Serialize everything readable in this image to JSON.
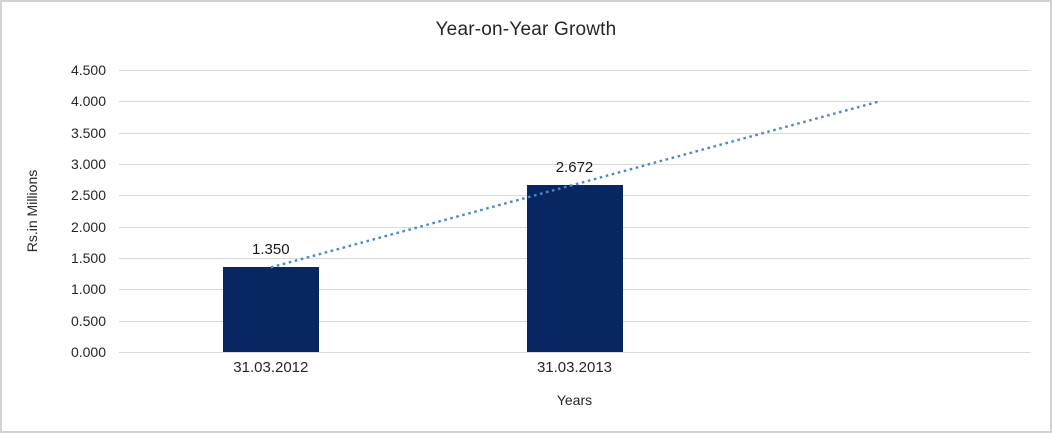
{
  "chart_data": {
    "type": "bar",
    "title": "Year-on-Year Growth",
    "xlabel": "Years",
    "ylabel": "Rs.in Millions",
    "categories": [
      "31.03.2012",
      "31.03.2013"
    ],
    "values": [
      1.35,
      2.672
    ],
    "value_labels": [
      "1.350",
      "2.672"
    ],
    "series_name": "",
    "ylim": [
      0,
      4.5
    ],
    "yticks": [
      {
        "value": 0.0,
        "label": "0.000"
      },
      {
        "value": 0.5,
        "label": "0.500"
      },
      {
        "value": 1.0,
        "label": "1.000"
      },
      {
        "value": 1.5,
        "label": "1.500"
      },
      {
        "value": 2.0,
        "label": "2.000"
      },
      {
        "value": 2.5,
        "label": "2.500"
      },
      {
        "value": 3.0,
        "label": "3.000"
      },
      {
        "value": 3.5,
        "label": "3.500"
      },
      {
        "value": 4.0,
        "label": "4.000"
      },
      {
        "value": 4.5,
        "label": "4.500"
      }
    ],
    "grid": true,
    "legend": "none",
    "num_category_slots": 3,
    "bar_color": "#082661",
    "gridline_color": "#d9d9d9",
    "trendline": {
      "type": "linear",
      "style": "dotted",
      "color": "#4e86c8",
      "start_slot_center": 0,
      "end_slot_center": 2,
      "y_start": 1.35,
      "y_end": 3.994
    }
  }
}
